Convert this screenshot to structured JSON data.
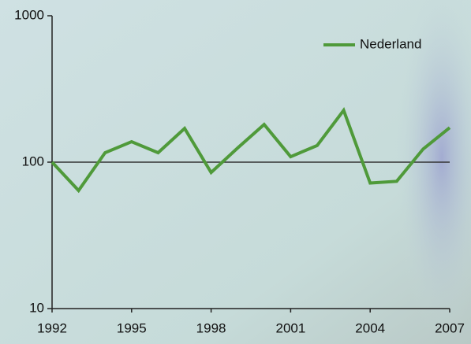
{
  "chart_data": {
    "type": "line",
    "x": [
      1992,
      1993,
      1994,
      1995,
      1996,
      1997,
      1998,
      1999,
      2000,
      2001,
      2002,
      2003,
      2004,
      2005,
      2006,
      2007
    ],
    "series": [
      {
        "name": "Nederland",
        "color": "#4f9a3a",
        "values": [
          100,
          64,
          116,
          138,
          116,
          170,
          85,
          125,
          181,
          109,
          130,
          226,
          72,
          74,
          123,
          172
        ]
      }
    ],
    "xlim": [
      1992,
      2007
    ],
    "xticks": [
      1992,
      1995,
      1998,
      2001,
      2004,
      2007
    ],
    "ylim": [
      10,
      1000
    ],
    "yticks": [
      10,
      100,
      1000
    ],
    "log_y": true,
    "reference_line": 100,
    "legend": "top-right"
  }
}
